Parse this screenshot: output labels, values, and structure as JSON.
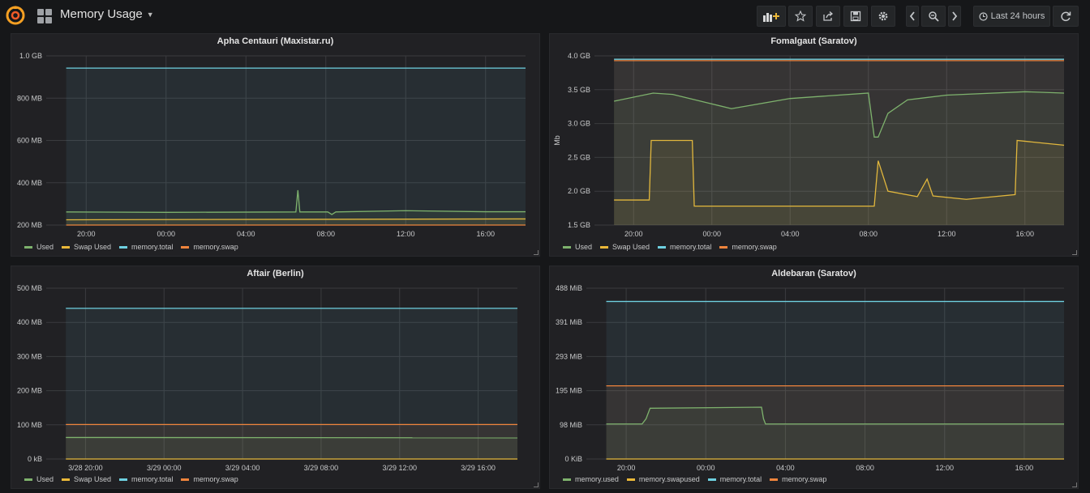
{
  "navbar": {
    "title": "Memory Usage",
    "time_range": "Last 24 hours"
  },
  "colors": {
    "used": "#7eb26d",
    "swap_used": "#eab839",
    "total": "#6ed0e0",
    "swap": "#ef843c"
  },
  "panels": [
    {
      "title": "Apha Centauri (Maxistar.ru)",
      "ylabel": "",
      "yticks": [
        "1.0 GB",
        "800 MB",
        "600 MB",
        "400 MB",
        "200 MB"
      ],
      "xticks": [
        "20:00",
        "00:00",
        "04:00",
        "08:00",
        "12:00",
        "16:00"
      ],
      "legend": [
        "Used",
        "Swap Used",
        "memory.total",
        "memory.swap"
      ]
    },
    {
      "title": "Fomalgaut (Saratov)",
      "ylabel": "Mb",
      "yticks": [
        "4.0 GB",
        "3.5 GB",
        "3.0 GB",
        "2.5 GB",
        "2.0 GB",
        "1.5 GB"
      ],
      "xticks": [
        "20:00",
        "00:00",
        "04:00",
        "08:00",
        "12:00",
        "16:00"
      ],
      "legend": [
        "Used",
        "Swap Used",
        "memory.total",
        "memory.swap"
      ]
    },
    {
      "title": "Aftair (Berlin)",
      "ylabel": "",
      "yticks": [
        "500 MB",
        "400 MB",
        "300 MB",
        "200 MB",
        "100 MB",
        "0 kB"
      ],
      "xticks": [
        "3/28 20:00",
        "3/29 00:00",
        "3/29 04:00",
        "3/29 08:00",
        "3/29 12:00",
        "3/29 16:00"
      ],
      "legend": [
        "Used",
        "Swap Used",
        "memory.total",
        "memory.swap"
      ]
    },
    {
      "title": "Aldebaran (Saratov)",
      "ylabel": "",
      "yticks": [
        "488 MiB",
        "391 MiB",
        "293 MiB",
        "195 MiB",
        "98 MiB",
        "0 KiB"
      ],
      "xticks": [
        "20:00",
        "00:00",
        "04:00",
        "08:00",
        "12:00",
        "16:00"
      ],
      "legend": [
        "memory.used",
        "memory.swapused",
        "memory.total",
        "memory.swap"
      ]
    }
  ],
  "chart_data": [
    {
      "type": "line",
      "title": "Apha Centauri (Maxistar.ru)",
      "ylim_mb": [
        200,
        1000
      ],
      "x_hours": [
        -6,
        18
      ],
      "series": [
        {
          "name": "Used",
          "values": [
            [
              -5,
              262
            ],
            [
              0,
              260
            ],
            [
              6.5,
              262
            ],
            [
              6.6,
              365
            ],
            [
              6.7,
              262
            ],
            [
              8.1,
              262
            ],
            [
              8.3,
              250
            ],
            [
              8.5,
              262
            ],
            [
              12,
              268
            ],
            [
              16,
              263
            ],
            [
              18,
              263
            ]
          ]
        },
        {
          "name": "Swap Used",
          "values": [
            [
              -5,
              225
            ],
            [
              18,
              229
            ]
          ]
        },
        {
          "name": "memory.total",
          "values": [
            [
              -5,
              942
            ],
            [
              18,
              942
            ]
          ]
        },
        {
          "name": "memory.swap",
          "values": [
            [
              -5,
              200
            ],
            [
              18,
              200
            ]
          ]
        }
      ]
    },
    {
      "type": "area",
      "title": "Fomalgaut (Saratov)",
      "ylabel": "Mb",
      "ylim_gb": [
        1.5,
        4.0
      ],
      "x_hours": [
        -6,
        18
      ],
      "series": [
        {
          "name": "Used",
          "values": [
            [
              -5,
              3.33
            ],
            [
              -3,
              3.45
            ],
            [
              -2,
              3.43
            ],
            [
              1,
              3.22
            ],
            [
              4,
              3.37
            ],
            [
              8,
              3.45
            ],
            [
              8.3,
              2.8
            ],
            [
              8.5,
              2.8
            ],
            [
              9,
              3.15
            ],
            [
              10,
              3.35
            ],
            [
              12,
              3.42
            ],
            [
              16,
              3.47
            ],
            [
              18,
              3.45
            ]
          ]
        },
        {
          "name": "Swap Used",
          "values": [
            [
              -5,
              1.87
            ],
            [
              -3.2,
              1.87
            ],
            [
              -3.1,
              2.75
            ],
            [
              -1,
              2.75
            ],
            [
              -0.9,
              1.78
            ],
            [
              8.3,
              1.78
            ],
            [
              8.5,
              2.45
            ],
            [
              9,
              2.0
            ],
            [
              10.5,
              1.92
            ],
            [
              11,
              2.18
            ],
            [
              11.3,
              1.93
            ],
            [
              13,
              1.88
            ],
            [
              15.5,
              1.95
            ],
            [
              15.6,
              2.75
            ],
            [
              18,
              2.68
            ]
          ]
        },
        {
          "name": "memory.total",
          "values": [
            [
              -5,
              3.95
            ],
            [
              18,
              3.95
            ]
          ]
        },
        {
          "name": "memory.swap",
          "values": [
            [
              -5,
              3.93
            ],
            [
              18,
              3.93
            ]
          ]
        }
      ]
    },
    {
      "type": "line",
      "title": "Aftair (Berlin)",
      "ylim_mb": [
        0,
        500
      ],
      "x_hours": [
        -6,
        18
      ],
      "series": [
        {
          "name": "Used",
          "values": [
            [
              -5,
              63
            ],
            [
              18,
              62
            ]
          ]
        },
        {
          "name": "Swap Used",
          "values": [
            [
              -5,
              0
            ],
            [
              18,
              0
            ]
          ]
        },
        {
          "name": "memory.total",
          "values": [
            [
              -5,
              441
            ],
            [
              18,
              441
            ]
          ]
        },
        {
          "name": "memory.swap",
          "values": [
            [
              -5,
              101
            ],
            [
              18,
              101
            ]
          ]
        }
      ]
    },
    {
      "type": "area",
      "title": "Aldebaran (Saratov)",
      "ylim_mib": [
        0,
        488
      ],
      "x_hours": [
        -6,
        18
      ],
      "series": [
        {
          "name": "memory.used",
          "values": [
            [
              -5,
              100
            ],
            [
              -3.2,
              100
            ],
            [
              -3,
              115
            ],
            [
              -2.8,
              145
            ],
            [
              2.8,
              148
            ],
            [
              2.9,
              115
            ],
            [
              3.0,
              100
            ],
            [
              18,
              100
            ]
          ]
        },
        {
          "name": "memory.swapused",
          "values": [
            [
              -5,
              0
            ],
            [
              18,
              0
            ]
          ]
        },
        {
          "name": "memory.total",
          "values": [
            [
              -5,
              450
            ],
            [
              18,
              450
            ]
          ]
        },
        {
          "name": "memory.swap",
          "values": [
            [
              -5,
              209
            ],
            [
              18,
              209
            ]
          ]
        }
      ]
    }
  ]
}
